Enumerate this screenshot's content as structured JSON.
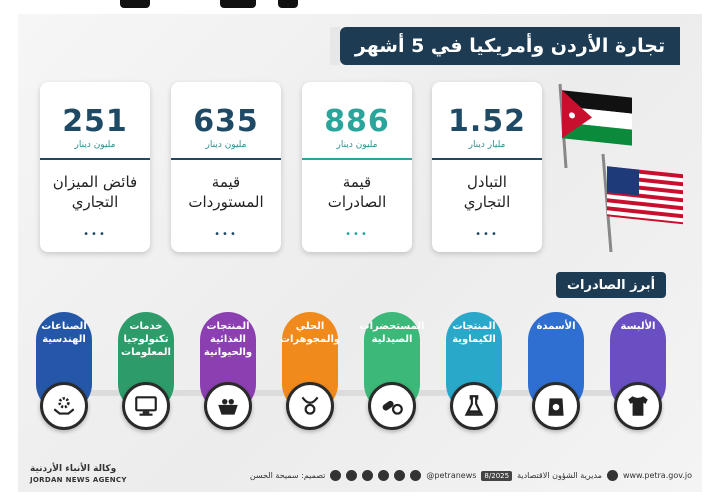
{
  "header": {
    "title": "تجارة الأردن وأمريكيا في 5 أشهر"
  },
  "cards": [
    {
      "value": "1.52",
      "unit": "مليار دينار",
      "label": "التبادل التجاري",
      "color": "#1f4a66"
    },
    {
      "value": "886",
      "unit": "مليون دينار",
      "label": "قيمة الصادرات",
      "color": "#2aa59b"
    },
    {
      "value": "635",
      "unit": "مليون دينار",
      "label": "قيمة المستوردات",
      "color": "#1f4a66"
    },
    {
      "value": "251",
      "unit": "مليون دينار",
      "label": "فائض الميزان التجاري",
      "color": "#1f4a66"
    }
  ],
  "dots": "•••",
  "section": {
    "title": "أبرز الصادرات"
  },
  "categories": [
    {
      "label": "الألبسة",
      "color": "#6a4fc2",
      "icon": "tshirt-icon"
    },
    {
      "label": "الأسمدة",
      "color": "#2f6fd1",
      "icon": "fertilizer-bag-icon"
    },
    {
      "label": "المنتجات الكيماوية",
      "color": "#2aa8c9",
      "icon": "flask-icon"
    },
    {
      "label": "المستحضرات الصيدلية",
      "color": "#3cb878",
      "icon": "pills-icon"
    },
    {
      "label": "الحلي والمجوهرات",
      "color": "#f08a1c",
      "icon": "jewelry-icon"
    },
    {
      "label": "المنتجات الغذائية والحيوانية",
      "color": "#8b3fb0",
      "icon": "food-basket-icon"
    },
    {
      "label": "خدمات تكنولوجيا المعلومات",
      "color": "#2d9b6a",
      "icon": "computer-icon"
    },
    {
      "label": "الصناعات الهندسية",
      "color": "#2457a8",
      "icon": "gear-hand-icon"
    }
  ],
  "footer": {
    "website": "www.petra.gov.jo",
    "directorate": "مديرية الشؤون الاقتصادية",
    "date": "8/2025",
    "handle": "@petranews",
    "design": "تصميم: سميحة الحسن",
    "agency_ar": "وكالة الأنباء الأردنية",
    "agency_en": "JORDAN NEWS AGENCY"
  }
}
